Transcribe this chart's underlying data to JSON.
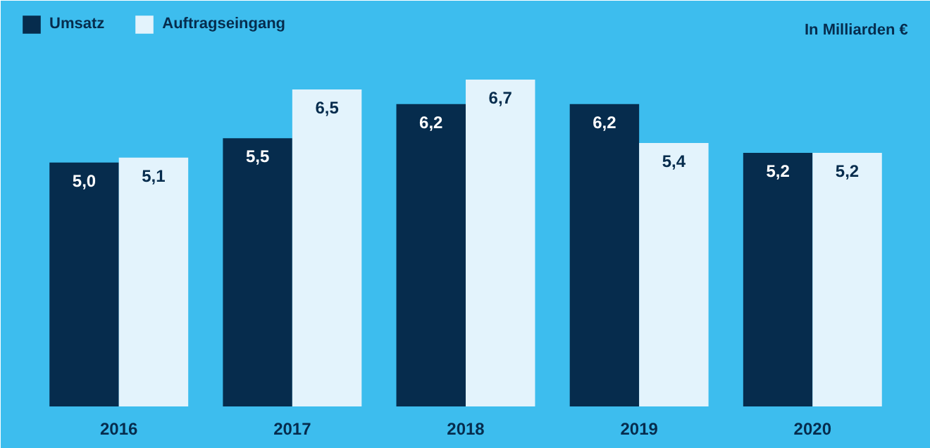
{
  "chart_data": {
    "type": "bar",
    "categories": [
      "2016",
      "2017",
      "2018",
      "2019",
      "2020"
    ],
    "series": [
      {
        "name": "Umsatz",
        "color": "#062c4d",
        "values": [
          5.0,
          5.5,
          6.2,
          6.2,
          5.2
        ],
        "value_labels": [
          "5,0",
          "5,5",
          "6,2",
          "6,2",
          "5,2"
        ]
      },
      {
        "name": "Auftragseingang",
        "color": "#e3f3fc",
        "values": [
          5.1,
          6.5,
          6.7,
          5.4,
          5.2
        ],
        "value_labels": [
          "5,1",
          "6,5",
          "6,7",
          "5,4",
          "5,2"
        ]
      }
    ],
    "annotations": [
      "In Milliarden €"
    ],
    "legend": "top left",
    "grid": false
  }
}
